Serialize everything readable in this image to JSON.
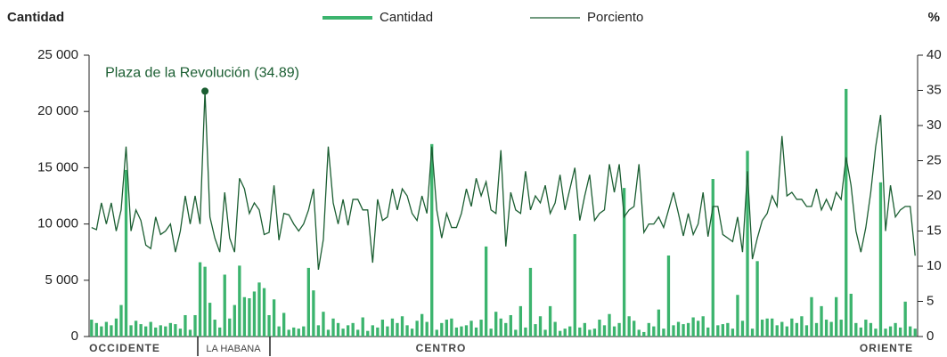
{
  "chart_data": {
    "type": "bar-line",
    "y_label": "Cantidad",
    "y2_label": "%",
    "annotation": {
      "text": "Plaza de la Revolución (34.89)",
      "index": 23
    },
    "regions": [
      "OCCIDENTE",
      "LA HABANA",
      "CENTRO",
      "ORIENTE"
    ],
    "ylim": [
      0,
      25000
    ],
    "yticks": [
      0,
      {
        "value": 5000,
        "label": "5 000"
      },
      {
        "value": 10000,
        "label": "10 000"
      },
      {
        "value": 15000,
        "label": "15 000"
      },
      {
        "value": 20000,
        "label": "20 000"
      },
      {
        "value": 25000,
        "label": "25 000"
      }
    ],
    "y2lim": [
      0,
      40
    ],
    "y2ticks": [
      0,
      5,
      10,
      15,
      20,
      25,
      30,
      35,
      40
    ],
    "series": [
      {
        "name": "Cantidad",
        "color": "#3cb46e",
        "kind": "bar",
        "values": [
          1500,
          1200,
          900,
          1300,
          1000,
          1600,
          2800,
          14800,
          1000,
          1400,
          1100,
          900,
          1300,
          800,
          1000,
          900,
          1200,
          1100,
          700,
          1900,
          600,
          1900,
          6600,
          6200,
          3000,
          1500,
          800,
          5500,
          1600,
          2800,
          6300,
          3500,
          3400,
          4000,
          4800,
          4300,
          1900,
          3300,
          900,
          2100,
          600,
          800,
          700,
          900,
          6100,
          4100,
          1000,
          2200,
          600,
          1600,
          1200,
          700,
          1000,
          1200,
          600,
          1700,
          500,
          1000,
          800,
          1500,
          900,
          1600,
          1200,
          1800,
          1000,
          700,
          1400,
          2000,
          1300,
          17100,
          600,
          1200,
          1500,
          1600,
          800,
          900,
          1000,
          1400,
          800,
          1500,
          8000,
          700,
          2200,
          1600,
          1200,
          1900,
          600,
          2700,
          800,
          6100,
          1100,
          1800,
          600,
          2700,
          1300,
          500,
          700,
          900,
          9100,
          800,
          1200,
          600,
          700,
          1500,
          1000,
          2000,
          900,
          1200,
          13200,
          1800,
          1400,
          600,
          400,
          1200,
          900,
          2400,
          700,
          7200,
          1000,
          1300,
          1100,
          1200,
          1700,
          1400,
          1800,
          800,
          14000,
          1000,
          1100,
          1200,
          700,
          3700,
          1400,
          16500,
          700,
          6700,
          1500,
          1600,
          1600,
          1000,
          1300,
          900,
          1600,
          1200,
          1800,
          1000,
          3500,
          1200,
          2700,
          1500,
          1300,
          3500,
          1500,
          22000,
          3800,
          1200,
          800,
          1500,
          1200,
          700,
          13700,
          700,
          900,
          1200,
          800,
          3100,
          900,
          700
        ]
      },
      {
        "name": "Porciento",
        "color": "#1b5e32",
        "kind": "line",
        "axis": "y2",
        "values": [
          15.5,
          15.2,
          19,
          16,
          19,
          15,
          18,
          27,
          15,
          18,
          16.5,
          13,
          12.5,
          17,
          14.5,
          15,
          16,
          12,
          15,
          20,
          16,
          20,
          16,
          34.89,
          17,
          14,
          12,
          20.5,
          14,
          12,
          22.5,
          21,
          17.5,
          19,
          18,
          14.5,
          14.8,
          21.5,
          13.7,
          17.5,
          17.3,
          16,
          15,
          16,
          18,
          21,
          9.5,
          13.8,
          27,
          19,
          16,
          19.5,
          15.8,
          19.5,
          19.5,
          18,
          18,
          10.5,
          19.5,
          16.5,
          17,
          21,
          18,
          21,
          20,
          17.5,
          16.5,
          20,
          17.5,
          27,
          18,
          14,
          17.5,
          15.5,
          15.5,
          17.5,
          21,
          18.5,
          22.5,
          20,
          22,
          18,
          17.5,
          26.5,
          12.8,
          20.5,
          18,
          17.5,
          23.5,
          18,
          20,
          19,
          21.5,
          17.5,
          19,
          23,
          18,
          21,
          24,
          16.5,
          20,
          23,
          16.5,
          17.5,
          18,
          24.5,
          20.5,
          24.5,
          17,
          18,
          18.5,
          24.5,
          14.8,
          16,
          16,
          17,
          15.5,
          18,
          20.5,
          17.5,
          14.3,
          17.5,
          14.5,
          16,
          20.5,
          14.2,
          18.5,
          18.5,
          14.5,
          14,
          13.5,
          17,
          12,
          23.5,
          11,
          14,
          16.5,
          17.5,
          20,
          18.5,
          28.5,
          20,
          20.5,
          19.5,
          19.5,
          18.5,
          18.5,
          21,
          18,
          19.5,
          18,
          20.5,
          19.5,
          25.5,
          21.5,
          15,
          12,
          15.5,
          20.5,
          27,
          31.5,
          15,
          21.5,
          17,
          18,
          18.5,
          18.5,
          11.5
        ]
      }
    ]
  }
}
